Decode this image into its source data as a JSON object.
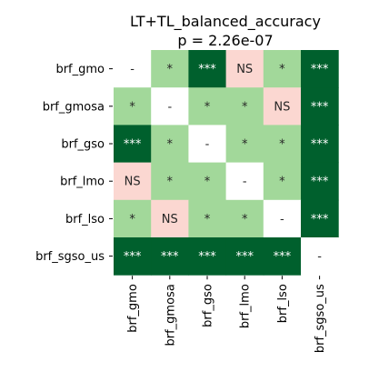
{
  "chart_data": {
    "type": "heatmap",
    "title_line1": "LT+TL_balanced_accuracy",
    "title_line2": "p = 2.26e-07",
    "rows": [
      "brf_gmo",
      "brf_gmosa",
      "brf_gso",
      "brf_lmo",
      "brf_lso",
      "brf_sgso_us"
    ],
    "cols": [
      "brf_gmo",
      "brf_gmosa",
      "brf_gso",
      "brf_lmo",
      "brf_lso",
      "brf_sgso_us"
    ],
    "cells": [
      [
        "-",
        "*",
        "***",
        "NS",
        "*",
        "***"
      ],
      [
        "*",
        "-",
        "*",
        "*",
        "NS",
        "***"
      ],
      [
        "***",
        "*",
        "-",
        "*",
        "*",
        "***"
      ],
      [
        "NS",
        "*",
        "*",
        "-",
        "*",
        "***"
      ],
      [
        "*",
        "NS",
        "*",
        "*",
        "-",
        "***"
      ],
      [
        "***",
        "***",
        "***",
        "***",
        "***",
        "-"
      ]
    ],
    "colors": {
      "***": "#00602d",
      "*": "#a2d89a",
      "NS": "#fbd7d1",
      "-": "#ffffff"
    },
    "text_colors": {
      "***": "#ffffff",
      "*": "#262626",
      "NS": "#262626",
      "-": "#262626"
    },
    "grid": false,
    "legend": "none"
  }
}
